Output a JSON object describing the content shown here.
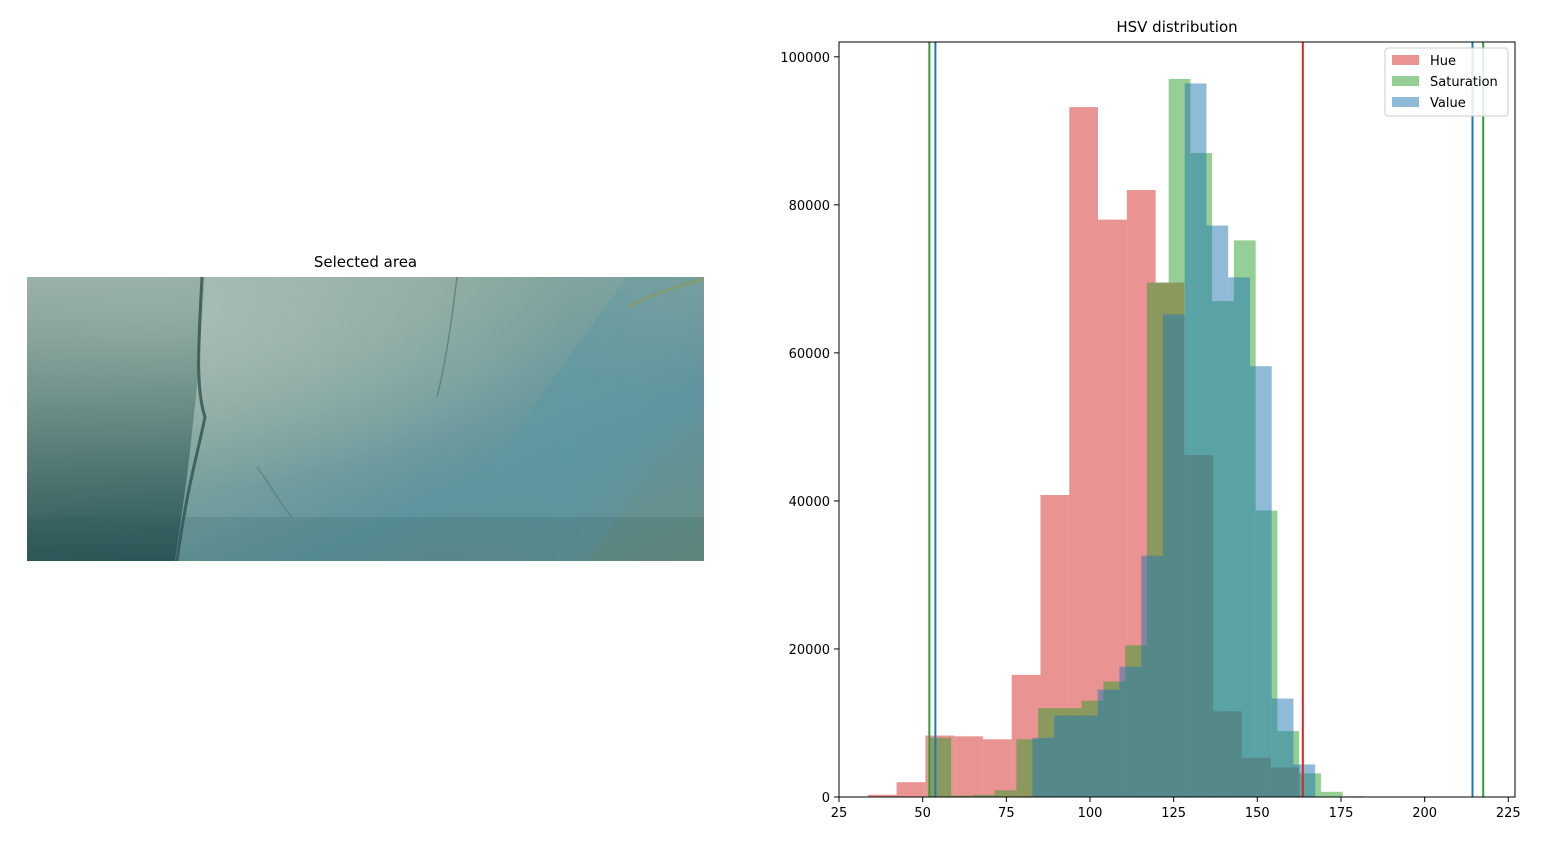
{
  "image_panel": {
    "title": "Selected area",
    "palette": {
      "base": "#6f9590",
      "light": "#9fb7ad",
      "dark": "#2d5a57",
      "blue": "#5d95a0",
      "crack": "#355550"
    }
  },
  "chart_data": {
    "type": "histogram",
    "title": "HSV distribution",
    "xlim": [
      25,
      227
    ],
    "ylim": [
      0,
      102000
    ],
    "xticks": [
      25,
      50,
      75,
      100,
      125,
      150,
      175,
      200,
      225
    ],
    "yticks": [
      0,
      20000,
      40000,
      60000,
      80000,
      100000
    ],
    "legend_position": "top-right",
    "series": [
      {
        "name": "Hue",
        "color": "#d62728",
        "alpha": 0.5,
        "bin_edges": [
          33.6,
          42.2,
          50.8,
          59.4,
          68.0,
          76.6,
          85.2,
          93.8,
          102.4,
          111.0,
          119.6,
          128.2,
          136.8,
          145.4,
          154.0,
          162.6
        ],
        "counts": [
          300,
          2000,
          8300,
          8200,
          7800,
          16500,
          40800,
          93200,
          78000,
          82000,
          69500,
          46200,
          11600,
          5300,
          4000
        ]
      },
      {
        "name": "Saturation",
        "color": "#2ca02c",
        "alpha": 0.5,
        "bin_edges": [
          52.0,
          58.5,
          65.0,
          71.5,
          78.0,
          84.5,
          91.0,
          97.5,
          104.0,
          110.5,
          117.0,
          123.5,
          130.0,
          136.5,
          143.0,
          149.5,
          156.0,
          162.5,
          169.0,
          175.5,
          182.0
        ],
        "counts": [
          8000,
          200,
          300,
          900,
          7800,
          12000,
          12000,
          13000,
          15600,
          20500,
          69500,
          97000,
          87000,
          67000,
          75200,
          38700,
          8900,
          3200,
          700,
          100
        ]
      },
      {
        "name": "Value",
        "color": "#1f77b4",
        "alpha": 0.5,
        "bin_edges": [
          82.8,
          89.3,
          95.8,
          102.3,
          108.8,
          115.3,
          121.8,
          128.3,
          134.8,
          141.3,
          147.8,
          154.3,
          160.8,
          167.3
        ],
        "counts": [
          8000,
          11000,
          11000,
          14500,
          17600,
          32600,
          65200,
          96400,
          77200,
          70200,
          58200,
          13300,
          4400
        ]
      }
    ],
    "vlines": [
      {
        "series": "Saturation",
        "x": 52.0,
        "color": "#2ca02c"
      },
      {
        "series": "Value",
        "x": 53.8,
        "color": "#1f77b4"
      },
      {
        "series": "Hue",
        "x": 163.6,
        "color": "#d62728"
      },
      {
        "series": "Value",
        "x": 214.3,
        "color": "#1f77b4"
      },
      {
        "series": "Saturation",
        "x": 217.5,
        "color": "#2ca02c"
      }
    ]
  }
}
